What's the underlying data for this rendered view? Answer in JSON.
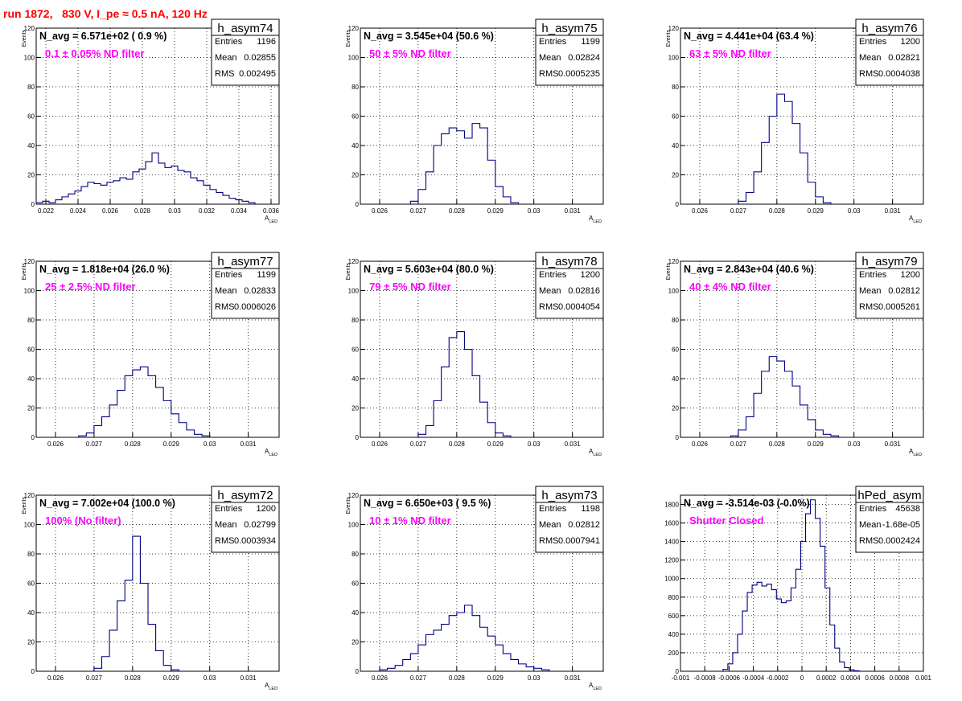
{
  "title": "run 1872,   830 V, I_pe ≈ 0.5 nA, 120 Hz",
  "stats_labels": {
    "entries": "Entries",
    "mean": "Mean",
    "rms": "RMS"
  },
  "colors": {
    "title": "#ff0000",
    "annotation": "#ff00ff",
    "histogram": "#000080",
    "grid": "#000000"
  },
  "chart_data": [
    {
      "type": "bar",
      "histtype": "step",
      "name": "h_asym74",
      "n_avg_label": "N_avg = 6.571e+02 ( 0.9 %)",
      "annotation": "0.1 ± 0.05% ND filter",
      "stats": {
        "entries": "1196",
        "mean": "0.02855",
        "rms": "0.002495"
      },
      "xlabel": "A_LED",
      "ylabel": "Events",
      "xlim": [
        0.0214,
        0.0365
      ],
      "ylim": [
        0,
        120
      ],
      "grid": true,
      "xticks": [
        0.022,
        0.024,
        0.026,
        0.028,
        0.03,
        0.032,
        0.034,
        0.036
      ],
      "xtick_labels": [
        "0.022",
        "0.024",
        "0.026",
        "0.028",
        "0.03",
        "0.032",
        "0.034",
        "0.036"
      ],
      "yticks": [
        0,
        20,
        40,
        60,
        80,
        100,
        120
      ],
      "x": [
        0.0216,
        0.022,
        0.0224,
        0.0228,
        0.0232,
        0.0236,
        0.024,
        0.0244,
        0.0248,
        0.0252,
        0.0256,
        0.026,
        0.0264,
        0.0268,
        0.0272,
        0.0276,
        0.028,
        0.0284,
        0.0288,
        0.0292,
        0.0296,
        0.03,
        0.0304,
        0.0308,
        0.0312,
        0.0316,
        0.032,
        0.0324,
        0.0328,
        0.0332,
        0.0336,
        0.034,
        0.0344,
        0.0348
      ],
      "values": [
        1,
        2,
        1,
        3,
        5,
        7,
        9,
        12,
        15,
        14,
        13,
        15,
        16,
        18,
        17,
        22,
        24,
        29,
        35,
        28,
        25,
        26,
        23,
        22,
        18,
        16,
        13,
        10,
        8,
        6,
        4,
        3,
        2,
        1
      ]
    },
    {
      "type": "bar",
      "histtype": "step",
      "name": "h_asym75",
      "n_avg_label": "N_avg = 3.545e+04 (50.6 %)",
      "annotation": "50 ± 5% ND filter",
      "stats": {
        "entries": "1199",
        "mean": "0.02824",
        "rms": "0.0005235"
      },
      "xlabel": "A_LED",
      "ylabel": "Events",
      "xlim": [
        0.0255,
        0.0318
      ],
      "ylim": [
        0,
        120
      ],
      "grid": true,
      "xticks": [
        0.026,
        0.027,
        0.028,
        0.029,
        0.03,
        0.031
      ],
      "xtick_labels": [
        "0.026",
        "0.027",
        "0.028",
        "0.029",
        "0.03",
        "0.031"
      ],
      "yticks": [
        0,
        20,
        40,
        60,
        80,
        100,
        120
      ],
      "x": [
        0.0269,
        0.0271,
        0.0273,
        0.0275,
        0.0277,
        0.0279,
        0.0281,
        0.0283,
        0.0285,
        0.0287,
        0.0289,
        0.0291,
        0.0293,
        0.0295
      ],
      "values": [
        2,
        10,
        22,
        40,
        48,
        52,
        50,
        45,
        55,
        52,
        30,
        12,
        5,
        1
      ]
    },
    {
      "type": "bar",
      "histtype": "step",
      "name": "h_asym76",
      "n_avg_label": "N_avg = 4.441e+04 (63.4 %)",
      "annotation": "63 ± 5% ND filter",
      "stats": {
        "entries": "1200",
        "mean": "0.02821",
        "rms": "0.0004038"
      },
      "xlabel": "A_LED",
      "ylabel": "Events",
      "xlim": [
        0.0255,
        0.0318
      ],
      "ylim": [
        0,
        120
      ],
      "grid": true,
      "xticks": [
        0.026,
        0.027,
        0.028,
        0.029,
        0.03,
        0.031
      ],
      "xtick_labels": [
        "0.026",
        "0.027",
        "0.028",
        "0.029",
        "0.03",
        "0.031"
      ],
      "yticks": [
        0,
        20,
        40,
        60,
        80,
        100,
        120
      ],
      "x": [
        0.0271,
        0.0273,
        0.0275,
        0.0277,
        0.0279,
        0.0281,
        0.0283,
        0.0285,
        0.0287,
        0.0289,
        0.0291,
        0.0293
      ],
      "values": [
        2,
        8,
        22,
        42,
        60,
        75,
        70,
        55,
        35,
        15,
        5,
        1
      ]
    },
    {
      "type": "bar",
      "histtype": "step",
      "name": "h_asym77",
      "n_avg_label": "N_avg = 1.818e+04 (26.0 %)",
      "annotation": "25 ± 2.5% ND filter",
      "stats": {
        "entries": "1199",
        "mean": "0.02833",
        "rms": "0.0006026"
      },
      "xlabel": "A_LED",
      "ylabel": "Events",
      "xlim": [
        0.0255,
        0.0318
      ],
      "ylim": [
        0,
        120
      ],
      "grid": true,
      "xticks": [
        0.026,
        0.027,
        0.028,
        0.029,
        0.03,
        0.031
      ],
      "xtick_labels": [
        "0.026",
        "0.027",
        "0.028",
        "0.029",
        "0.03",
        "0.031"
      ],
      "yticks": [
        0,
        20,
        40,
        60,
        80,
        100,
        120
      ],
      "x": [
        0.0267,
        0.0269,
        0.0271,
        0.0273,
        0.0275,
        0.0277,
        0.0279,
        0.0281,
        0.0283,
        0.0285,
        0.0287,
        0.0289,
        0.0291,
        0.0293,
        0.0295,
        0.0297,
        0.0299
      ],
      "values": [
        1,
        3,
        8,
        14,
        22,
        32,
        42,
        46,
        48,
        42,
        34,
        25,
        16,
        10,
        5,
        2,
        1
      ]
    },
    {
      "type": "bar",
      "histtype": "step",
      "name": "h_asym78",
      "n_avg_label": "N_avg = 5.603e+04 (80.0 %)",
      "annotation": "79 ± 5% ND filter",
      "stats": {
        "entries": "1200",
        "mean": "0.02816",
        "rms": "0.0004054"
      },
      "xlabel": "A_LED",
      "ylabel": "Events",
      "xlim": [
        0.0255,
        0.0318
      ],
      "ylim": [
        0,
        120
      ],
      "grid": true,
      "xticks": [
        0.026,
        0.027,
        0.028,
        0.029,
        0.03,
        0.031
      ],
      "xtick_labels": [
        "0.026",
        "0.027",
        "0.028",
        "0.029",
        "0.03",
        "0.031"
      ],
      "yticks": [
        0,
        20,
        40,
        60,
        80,
        100,
        120
      ],
      "x": [
        0.0271,
        0.0273,
        0.0275,
        0.0277,
        0.0279,
        0.0281,
        0.0283,
        0.0285,
        0.0287,
        0.0289,
        0.0291,
        0.0293
      ],
      "values": [
        2,
        8,
        25,
        48,
        68,
        72,
        60,
        42,
        24,
        10,
        3,
        1
      ]
    },
    {
      "type": "bar",
      "histtype": "step",
      "name": "h_asym79",
      "n_avg_label": "N_avg = 2.843e+04 (40.6 %)",
      "annotation": "40 ± 4% ND filter",
      "stats": {
        "entries": "1200",
        "mean": "0.02812",
        "rms": "0.0005261"
      },
      "xlabel": "A_LED",
      "ylabel": "Events",
      "xlim": [
        0.0255,
        0.0318
      ],
      "ylim": [
        0,
        120
      ],
      "grid": true,
      "xticks": [
        0.026,
        0.027,
        0.028,
        0.029,
        0.03,
        0.031
      ],
      "xtick_labels": [
        "0.026",
        "0.027",
        "0.028",
        "0.029",
        "0.03",
        "0.031"
      ],
      "yticks": [
        0,
        20,
        40,
        60,
        80,
        100,
        120
      ],
      "x": [
        0.0269,
        0.0271,
        0.0273,
        0.0275,
        0.0277,
        0.0279,
        0.0281,
        0.0283,
        0.0285,
        0.0287,
        0.0289,
        0.0291,
        0.0293,
        0.0295
      ],
      "values": [
        1,
        5,
        14,
        30,
        45,
        55,
        52,
        45,
        35,
        22,
        12,
        5,
        2,
        1
      ]
    },
    {
      "type": "bar",
      "histtype": "step",
      "name": "h_asym72",
      "n_avg_label": "N_avg = 7.002e+04 (100.0 %)",
      "annotation": "100% (No filter)",
      "stats": {
        "entries": "1200",
        "mean": "0.02799",
        "rms": "0.0003934"
      },
      "xlabel": "A_LED",
      "ylabel": "Events",
      "xlim": [
        0.0255,
        0.0318
      ],
      "ylim": [
        0,
        120
      ],
      "grid": true,
      "xticks": [
        0.026,
        0.027,
        0.028,
        0.029,
        0.03,
        0.031
      ],
      "xtick_labels": [
        "0.026",
        "0.027",
        "0.028",
        "0.029",
        "0.03",
        "0.031"
      ],
      "yticks": [
        0,
        20,
        40,
        60,
        80,
        100,
        120
      ],
      "x": [
        0.0271,
        0.0273,
        0.0275,
        0.0277,
        0.0279,
        0.0281,
        0.0283,
        0.0285,
        0.0287,
        0.0289,
        0.0291
      ],
      "values": [
        2,
        10,
        28,
        48,
        62,
        92,
        60,
        32,
        14,
        4,
        1
      ]
    },
    {
      "type": "bar",
      "histtype": "step",
      "name": "h_asym73",
      "n_avg_label": "N_avg = 6.650e+03 ( 9.5 %)",
      "annotation": "10 ± 1% ND filter",
      "stats": {
        "entries": "1198",
        "mean": "0.02812",
        "rms": "0.0007941"
      },
      "xlabel": "A_LED",
      "ylabel": "Events",
      "xlim": [
        0.0255,
        0.0318
      ],
      "ylim": [
        0,
        120
      ],
      "grid": true,
      "xticks": [
        0.026,
        0.027,
        0.028,
        0.029,
        0.03,
        0.031
      ],
      "xtick_labels": [
        "0.026",
        "0.027",
        "0.028",
        "0.029",
        "0.03",
        "0.031"
      ],
      "yticks": [
        0,
        20,
        40,
        60,
        80,
        100,
        120
      ],
      "x": [
        0.0261,
        0.0263,
        0.0265,
        0.0267,
        0.0269,
        0.0271,
        0.0273,
        0.0275,
        0.0277,
        0.0279,
        0.0281,
        0.0283,
        0.0285,
        0.0287,
        0.0289,
        0.0291,
        0.0293,
        0.0295,
        0.0297,
        0.0299,
        0.0301,
        0.0303
      ],
      "values": [
        1,
        2,
        4,
        8,
        12,
        18,
        25,
        28,
        32,
        38,
        40,
        45,
        38,
        30,
        24,
        18,
        12,
        8,
        5,
        3,
        2,
        1
      ]
    },
    {
      "type": "bar",
      "histtype": "step",
      "name": "hPed_asym",
      "n_avg_label": "N_avg = -3.514e-03 (-0.0%)",
      "annotation": "Shutter Closed",
      "stats": {
        "entries": "45638",
        "mean": "-1.68e-05",
        "rms": "0.0002424"
      },
      "xlabel": "",
      "ylabel": "",
      "xlim": [
        -0.001,
        0.001
      ],
      "ylim": [
        0,
        1900
      ],
      "grid": true,
      "xticks": [
        -0.001,
        -0.0008,
        -0.0006,
        -0.0004,
        -0.0002,
        0,
        0.0002,
        0.0004,
        0.0006,
        0.0008,
        0.001
      ],
      "xtick_labels": [
        "-0.001",
        "-0.0008",
        "-0.0006",
        "-0.0004",
        "-0.0002",
        "0",
        "0.0002",
        "0.0004",
        "0.0006",
        "0.0008",
        "0.001"
      ],
      "yticks": [
        0,
        200,
        400,
        600,
        800,
        1000,
        1200,
        1400,
        1600,
        1800
      ],
      "x": [
        -0.00063,
        -0.00059,
        -0.00055,
        -0.00051,
        -0.00047,
        -0.00043,
        -0.00039,
        -0.00035,
        -0.00031,
        -0.00027,
        -0.00023,
        -0.00019,
        -0.00015,
        -0.00011,
        -7e-05,
        -3e-05,
        1e-05,
        5e-05,
        9e-05,
        0.00013,
        0.00017,
        0.00021,
        0.00025,
        0.00029,
        0.00033,
        0.00037,
        0.00041,
        0.00045
      ],
      "values": [
        20,
        80,
        200,
        400,
        650,
        850,
        930,
        960,
        920,
        940,
        880,
        780,
        740,
        760,
        900,
        1100,
        1400,
        1700,
        1850,
        1650,
        1350,
        900,
        500,
        250,
        100,
        40,
        15,
        5
      ]
    }
  ]
}
